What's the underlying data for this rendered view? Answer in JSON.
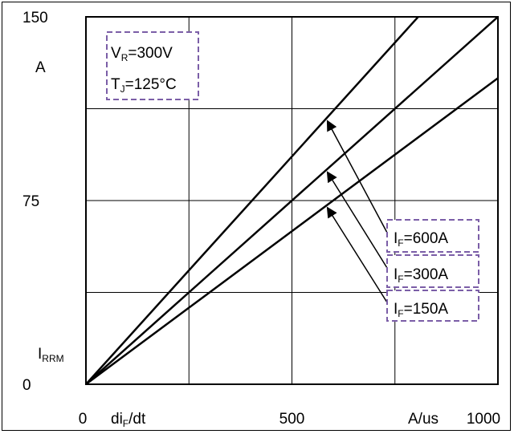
{
  "chart_data": {
    "type": "line",
    "title": "",
    "xlabel": {
      "main": "di",
      "sub": "F",
      "rest": "/dt"
    },
    "xunit": "A/us",
    "ylabel": {
      "main": "I",
      "sub": "RRM"
    },
    "yunit": "A",
    "xlim": [
      0,
      1000
    ],
    "ylim": [
      0,
      150
    ],
    "x_tick_labels": [
      {
        "value": 0,
        "text": "0"
      },
      {
        "value": 500,
        "text": "500"
      },
      {
        "value": 1000,
        "text": "1000"
      }
    ],
    "y_tick_labels": [
      {
        "value": 0,
        "text": "0"
      },
      {
        "value": 75,
        "text": "75"
      },
      {
        "value": 150,
        "text": "150"
      }
    ],
    "grid": {
      "x_step": 250,
      "y_step": 37.5,
      "visible": true
    },
    "conditions": [
      {
        "main": "V",
        "sub": "R",
        "rest": "=300V"
      },
      {
        "main": "T",
        "sub": "J",
        "rest": "=125°C"
      }
    ],
    "series": [
      {
        "label": {
          "main": "I",
          "sub": "F",
          "rest": "=600A"
        },
        "x": [
          0,
          1000
        ],
        "y": [
          0,
          186
        ]
      },
      {
        "label": {
          "main": "I",
          "sub": "F",
          "rest": "=300A"
        },
        "x": [
          0,
          1000
        ],
        "y": [
          0,
          150
        ]
      },
      {
        "label": {
          "main": "I",
          "sub": "F",
          "rest": "=150A"
        },
        "x": [
          0,
          1000
        ],
        "y": [
          0,
          125
        ]
      }
    ],
    "annotation_box_color": "#7b5ea7",
    "line_color": "#000000"
  }
}
